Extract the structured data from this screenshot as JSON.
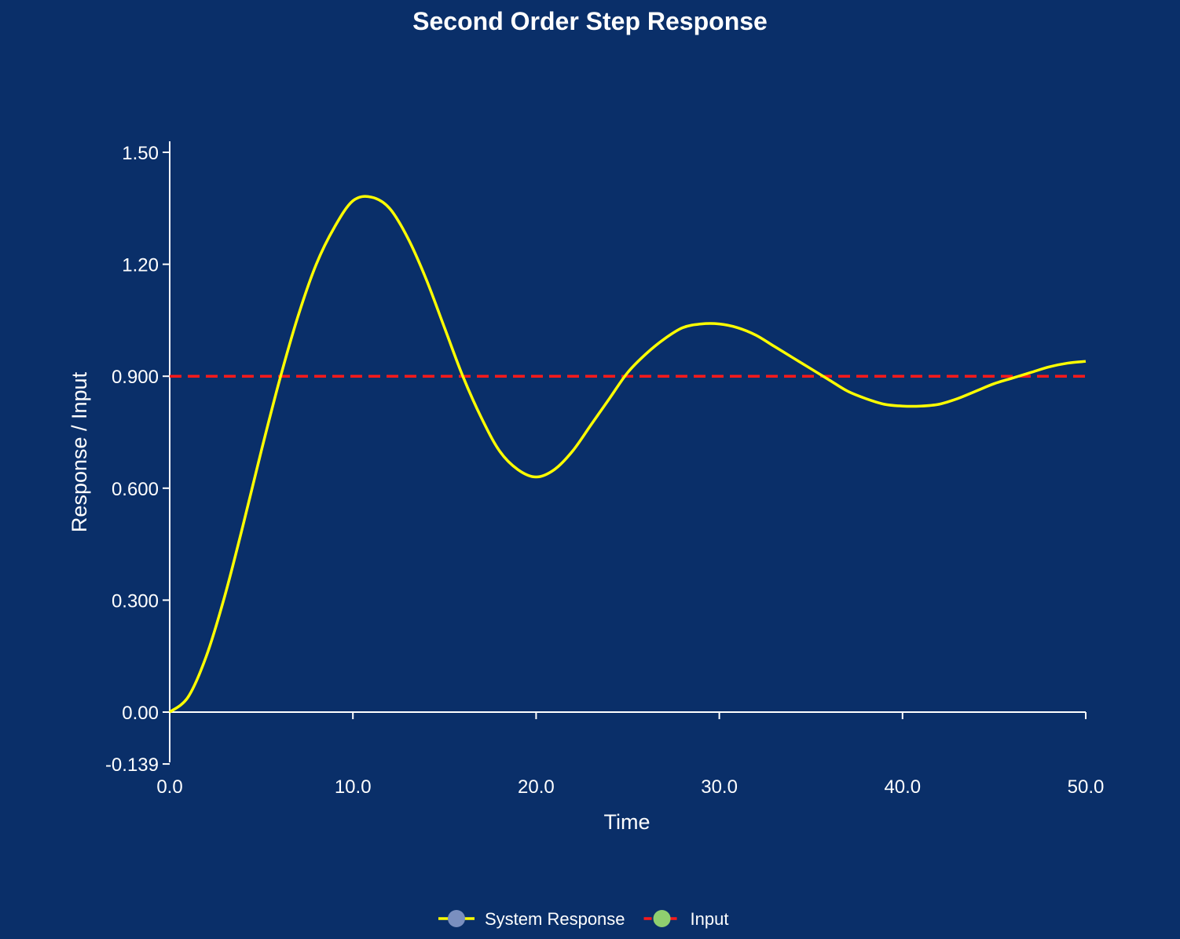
{
  "chart_data": {
    "type": "line",
    "title": "Second Order Step Response",
    "xlabel": "Time",
    "ylabel": "Response / Input",
    "xlim": [
      0,
      50
    ],
    "ylim": [
      -0.139,
      1.53
    ],
    "x_ticks": [
      "0.0",
      "10.0",
      "20.0",
      "30.0",
      "40.0",
      "50.0"
    ],
    "x_tick_values": [
      0,
      10,
      20,
      30,
      40,
      50
    ],
    "y_ticks": [
      "-0.139",
      "0.00",
      "0.300",
      "0.600",
      "0.900",
      "1.20",
      "1.50"
    ],
    "y_tick_values": [
      -0.139,
      0,
      0.3,
      0.6,
      0.9,
      1.2,
      1.5
    ],
    "grid": false,
    "legend_position": "bottom-center",
    "series": [
      {
        "name": "System Response",
        "color": "#ffff00",
        "line_style": "solid",
        "legend_marker_color": "#7a8fbf",
        "x": [
          0,
          1,
          2,
          3,
          4,
          5,
          6,
          7,
          8,
          9,
          10,
          11,
          12,
          13,
          14,
          15,
          16,
          17,
          18,
          19,
          20,
          21,
          22,
          23,
          24,
          25,
          26,
          27,
          28,
          29,
          30,
          31,
          32,
          33,
          34,
          35,
          36,
          37,
          38,
          39,
          40,
          41,
          42,
          43,
          44,
          45,
          46,
          47,
          48,
          49,
          50
        ],
        "y": [
          0.0,
          0.04,
          0.15,
          0.31,
          0.5,
          0.7,
          0.89,
          1.06,
          1.2,
          1.3,
          1.37,
          1.38,
          1.35,
          1.27,
          1.16,
          1.03,
          0.9,
          0.79,
          0.7,
          0.65,
          0.63,
          0.65,
          0.7,
          0.77,
          0.84,
          0.91,
          0.96,
          1.0,
          1.03,
          1.04,
          1.04,
          1.03,
          1.01,
          0.98,
          0.95,
          0.92,
          0.89,
          0.86,
          0.84,
          0.825,
          0.82,
          0.82,
          0.825,
          0.84,
          0.86,
          0.88,
          0.895,
          0.91,
          0.925,
          0.935,
          0.94
        ]
      },
      {
        "name": "Input",
        "color": "#ff1a1a",
        "line_style": "dashed",
        "legend_marker_color": "#8fcf6f",
        "x": [
          0,
          50
        ],
        "y": [
          0.9,
          0.9
        ]
      }
    ]
  }
}
